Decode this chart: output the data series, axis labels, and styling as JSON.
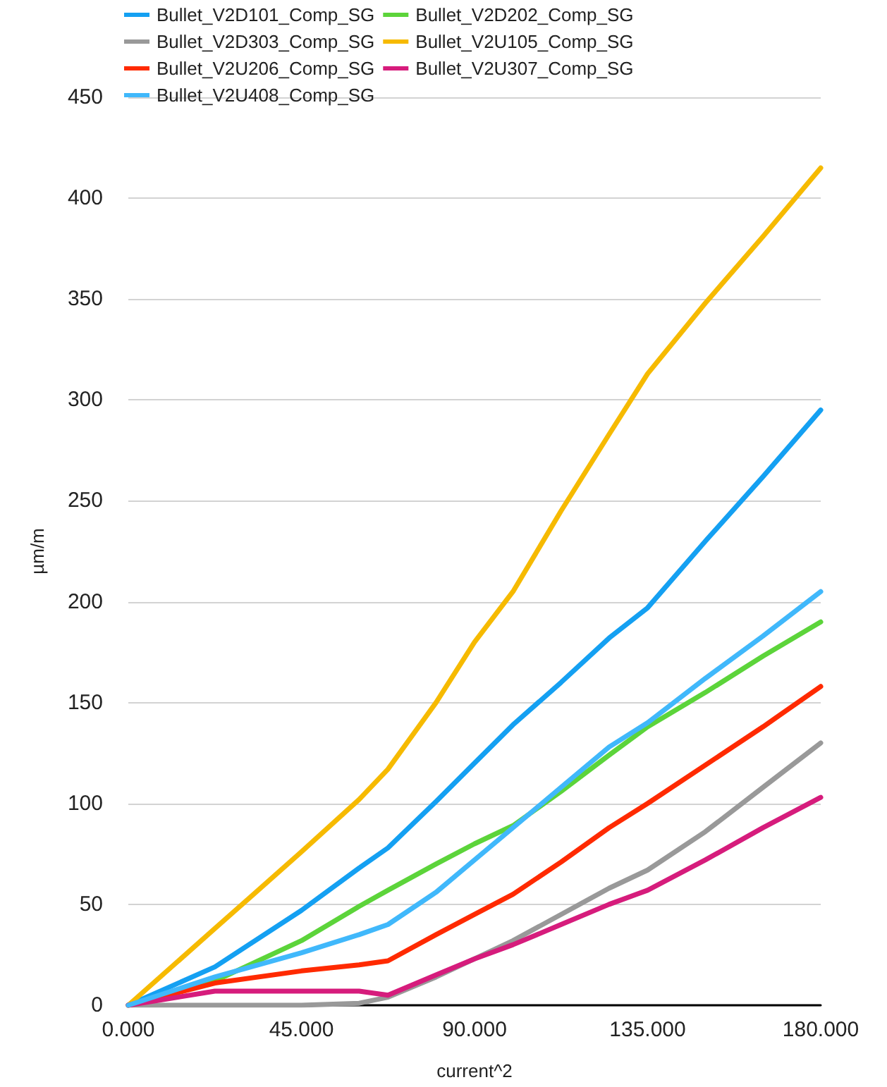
{
  "chart_data": {
    "type": "line",
    "xlabel": "current^2",
    "ylabel": "µm/m",
    "xlim": [
      0,
      180
    ],
    "xticks": [
      {
        "value": 0,
        "label": "0.000"
      },
      {
        "value": 45,
        "label": "45.000"
      },
      {
        "value": 90,
        "label": "90.000"
      },
      {
        "value": 135,
        "label": "135.000"
      },
      {
        "value": 180,
        "label": "180.000"
      }
    ],
    "ylim": [
      0,
      450
    ],
    "yticks": [
      0,
      50,
      100,
      150,
      200,
      250,
      300,
      350,
      400,
      450
    ],
    "grid": "y",
    "legend": "top",
    "marker": "none",
    "line_style": "solid",
    "x": [
      0,
      22.5,
      45,
      60,
      67.5,
      80,
      90,
      100,
      112.5,
      125,
      135,
      150,
      165,
      180
    ],
    "series": [
      {
        "name": "Bullet_V2D101_Comp_SG",
        "color": "#14a0f2",
        "values": [
          0,
          19,
          47,
          68,
          78,
          101,
          120,
          139,
          160,
          182,
          197,
          230,
          262,
          295
        ]
      },
      {
        "name": "Bullet_V2D202_Comp_SG",
        "color": "#5cd43a",
        "values": [
          0,
          12,
          32,
          49,
          57,
          70,
          80,
          89,
          106,
          124,
          138,
          155,
          173,
          190
        ]
      },
      {
        "name": "Bullet_V2D303_Comp_SG",
        "color": "#999999",
        "values": [
          0,
          0,
          0,
          1,
          4,
          14,
          23,
          32,
          45,
          58,
          67,
          86,
          108,
          130
        ]
      },
      {
        "name": "Bullet_V2U105_Comp_SG",
        "color": "#f6ba00",
        "values": [
          0,
          38,
          76,
          102,
          117,
          150,
          180,
          205,
          245,
          283,
          313,
          348,
          381,
          415
        ]
      },
      {
        "name": "Bullet_V2U206_Comp_SG",
        "color": "#ff2a00",
        "values": [
          0,
          11,
          17,
          20,
          22,
          35,
          45,
          55,
          71,
          88,
          100,
          119,
          138,
          158
        ]
      },
      {
        "name": "Bullet_V2U307_Comp_SG",
        "color": "#d61c7c",
        "values": [
          0,
          7,
          7,
          7,
          5,
          15,
          23,
          30,
          40,
          50,
          57,
          72,
          88,
          103
        ]
      },
      {
        "name": "Bullet_V2U408_Comp_SG",
        "color": "#40b8fb",
        "values": [
          0,
          14,
          26,
          35,
          40,
          56,
          72,
          88,
          108,
          128,
          140,
          162,
          183,
          205
        ]
      }
    ]
  }
}
